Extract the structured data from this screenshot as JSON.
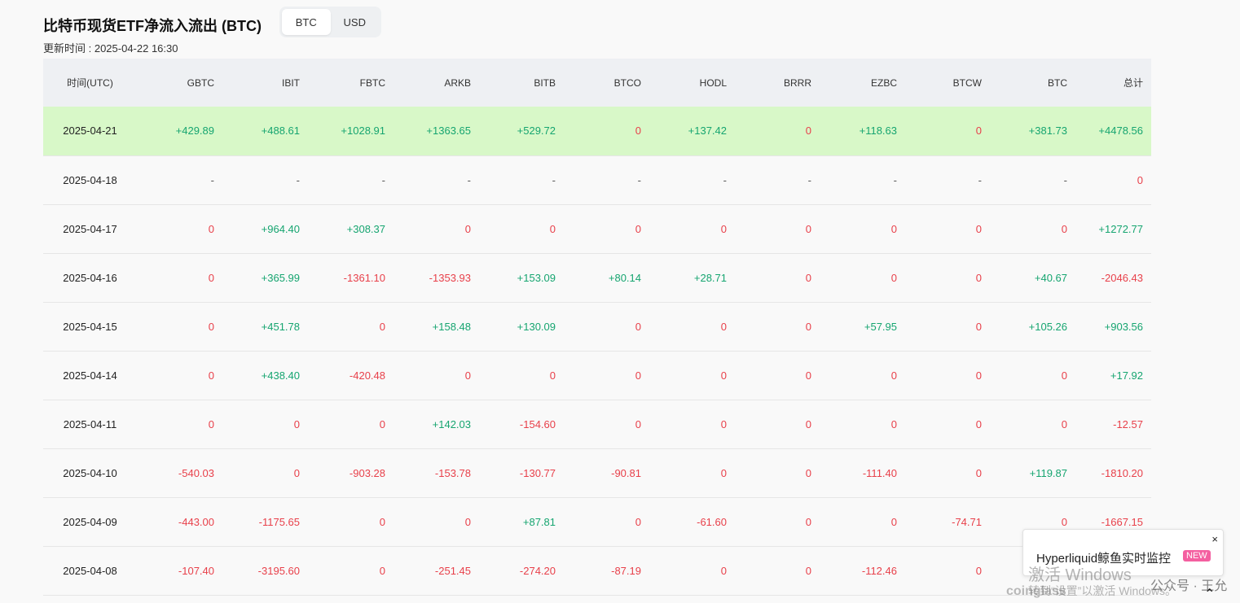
{
  "header": {
    "title": "比特币现货ETF净流入流出 (BTC)",
    "toggle": [
      {
        "label": "BTC",
        "active": true
      },
      {
        "label": "USD",
        "active": false
      }
    ],
    "updated": "更新时间 : 2025-04-22 16:30"
  },
  "table": {
    "columns": [
      "时间(UTC)",
      "GBTC",
      "IBIT",
      "FBTC",
      "ARKB",
      "BITB",
      "BTCO",
      "HODL",
      "BRRR",
      "EZBC",
      "BTCW",
      "BTC",
      "总计"
    ],
    "rows": [
      {
        "date": "2025-04-21",
        "highlight": true,
        "values": [
          "+429.89",
          "+488.61",
          "+1028.91",
          "+1363.65",
          "+529.72",
          "0",
          "+137.42",
          "0",
          "+118.63",
          "0",
          "+381.73",
          "+4478.56"
        ]
      },
      {
        "date": "2025-04-18",
        "highlight": false,
        "values": [
          "-",
          "-",
          "-",
          "-",
          "-",
          "-",
          "-",
          "-",
          "-",
          "-",
          "-",
          "0"
        ]
      },
      {
        "date": "2025-04-17",
        "highlight": false,
        "values": [
          "0",
          "+964.40",
          "+308.37",
          "0",
          "0",
          "0",
          "0",
          "0",
          "0",
          "0",
          "0",
          "+1272.77"
        ]
      },
      {
        "date": "2025-04-16",
        "highlight": false,
        "values": [
          "0",
          "+365.99",
          "-1361.10",
          "-1353.93",
          "+153.09",
          "+80.14",
          "+28.71",
          "0",
          "0",
          "0",
          "+40.67",
          "-2046.43"
        ]
      },
      {
        "date": "2025-04-15",
        "highlight": false,
        "values": [
          "0",
          "+451.78",
          "0",
          "+158.48",
          "+130.09",
          "0",
          "0",
          "0",
          "+57.95",
          "0",
          "+105.26",
          "+903.56"
        ]
      },
      {
        "date": "2025-04-14",
        "highlight": false,
        "values": [
          "0",
          "+438.40",
          "-420.48",
          "0",
          "0",
          "0",
          "0",
          "0",
          "0",
          "0",
          "0",
          "+17.92"
        ]
      },
      {
        "date": "2025-04-11",
        "highlight": false,
        "values": [
          "0",
          "0",
          "0",
          "+142.03",
          "-154.60",
          "0",
          "0",
          "0",
          "0",
          "0",
          "0",
          "-12.57"
        ]
      },
      {
        "date": "2025-04-10",
        "highlight": false,
        "values": [
          "-540.03",
          "0",
          "-903.28",
          "-153.78",
          "-130.77",
          "-90.81",
          "0",
          "0",
          "-111.40",
          "0",
          "+119.87",
          "-1810.20"
        ]
      },
      {
        "date": "2025-04-09",
        "highlight": false,
        "values": [
          "-443.00",
          "-1175.65",
          "0",
          "0",
          "+87.81",
          "0",
          "-61.60",
          "0",
          "0",
          "-74.71",
          "0",
          "-1667.15"
        ]
      },
      {
        "date": "2025-04-08",
        "highlight": false,
        "values": [
          "-107.40",
          "-3195.60",
          "0",
          "-251.45",
          "-274.20",
          "-87.19",
          "0",
          "0",
          "-112.46",
          "0",
          "",
          ""
        ]
      }
    ]
  },
  "notice": {
    "text": "Hyperliquid鲸鱼实时监控",
    "badge": "NEW",
    "close": "×"
  },
  "watermark": {
    "line1": "激活 Windows",
    "line2": "转到“设置”以激活 Windows。",
    "brand": "coinglass",
    "wechat": "公众号 · 王允"
  },
  "colors": {
    "positive": "#16a570",
    "negative": "#e8404a",
    "highlight_row": "#d8f8c8",
    "header_bg": "#eef0f3"
  }
}
